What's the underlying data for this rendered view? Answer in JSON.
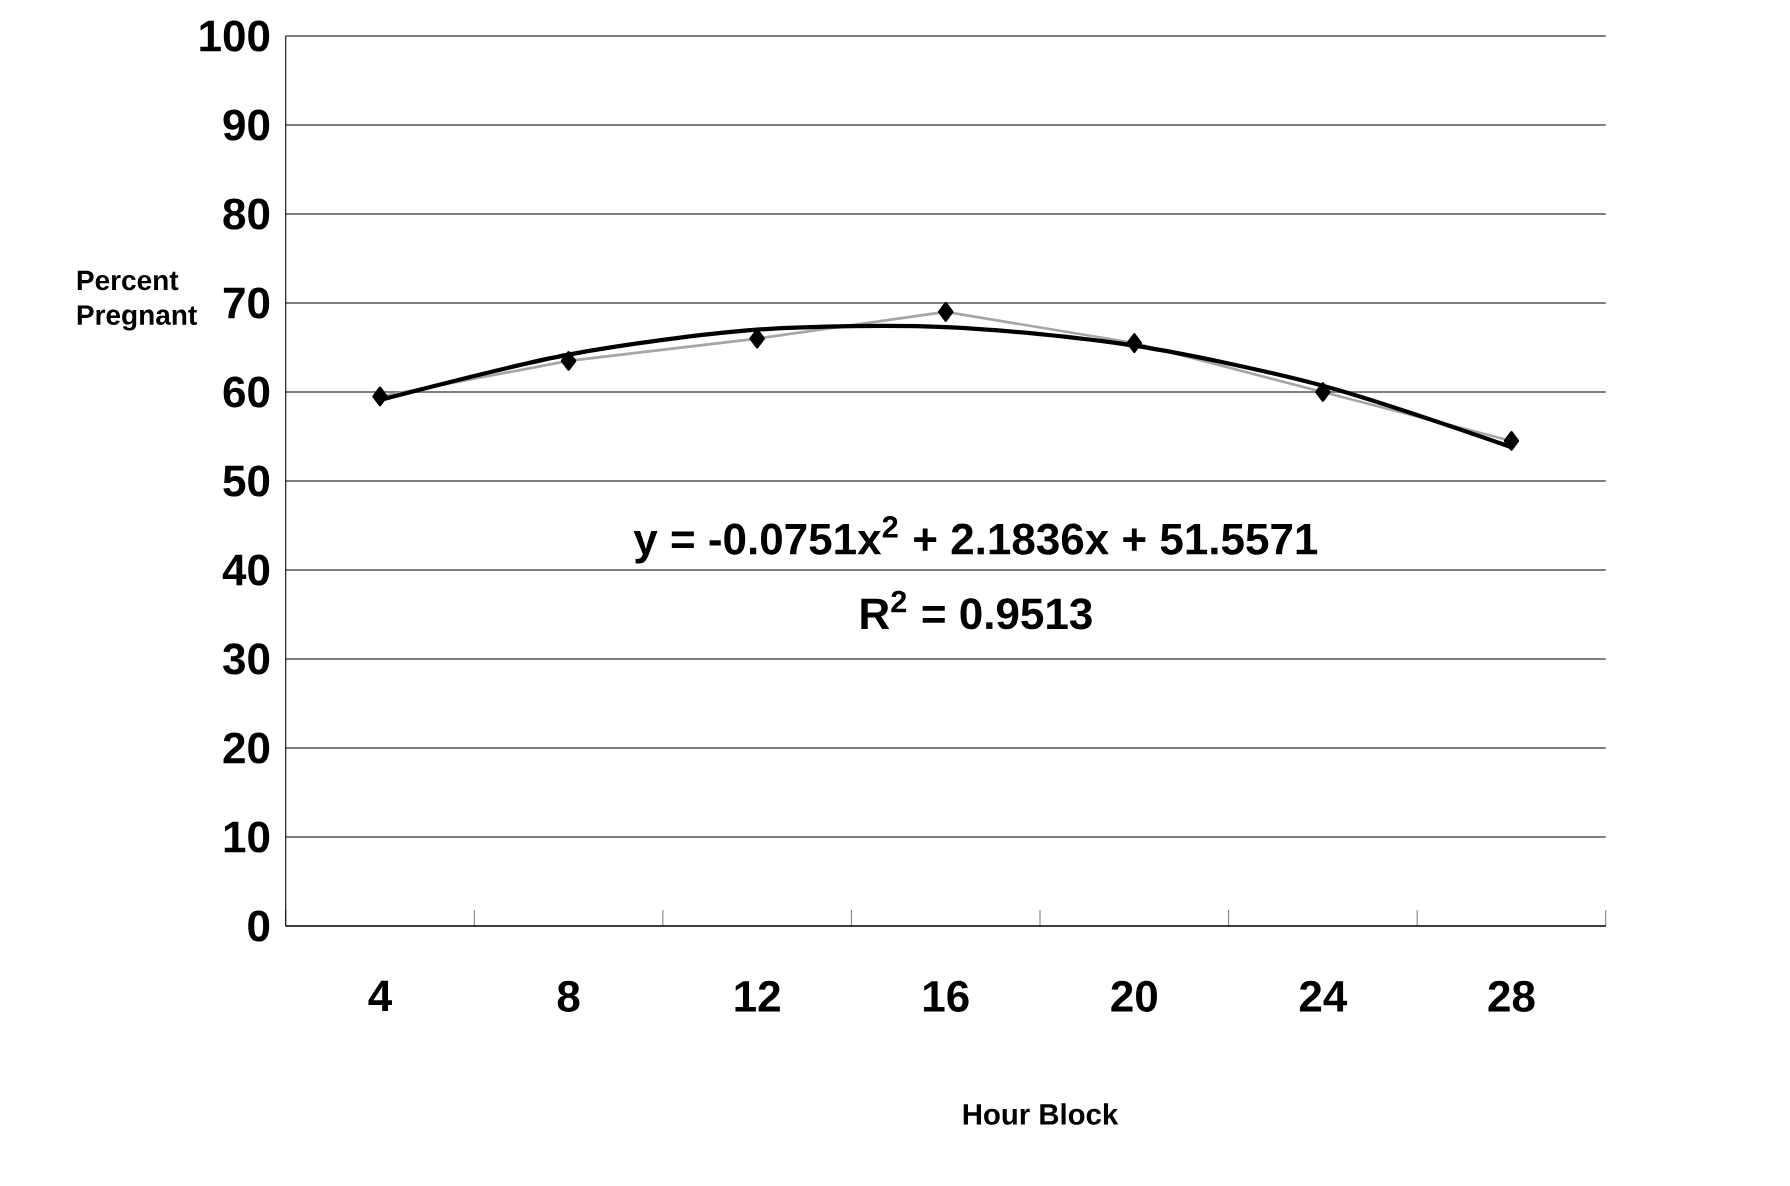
{
  "chart_data": {
    "type": "line",
    "xlabel": "Hour Block",
    "ylabel": "Percent Pregnant",
    "categories": [
      "4",
      "8",
      "12",
      "16",
      "20",
      "24",
      "28"
    ],
    "series": [
      {
        "color": "#a6a6a6",
        "marker": "diamond",
        "values": [
          59.5,
          63.5,
          66,
          69,
          65.5,
          60,
          54.5
        ]
      },
      {
        "color": "#000000",
        "marker": "none",
        "values": [
          59.1,
          64.2,
          67,
          67.3,
          65.2,
          60.7,
          53.8
        ]
      }
    ],
    "ylim": [
      0,
      100
    ],
    "yticks": [
      0,
      10,
      20,
      30,
      40,
      50,
      60,
      70,
      80,
      90,
      100
    ],
    "grid": "y",
    "legend": false,
    "annotations": [
      "y = -0.0751x$^{2}$ + 2.1836x + 51.5571",
      "R$^{2}$ = 0.9513"
    ]
  }
}
